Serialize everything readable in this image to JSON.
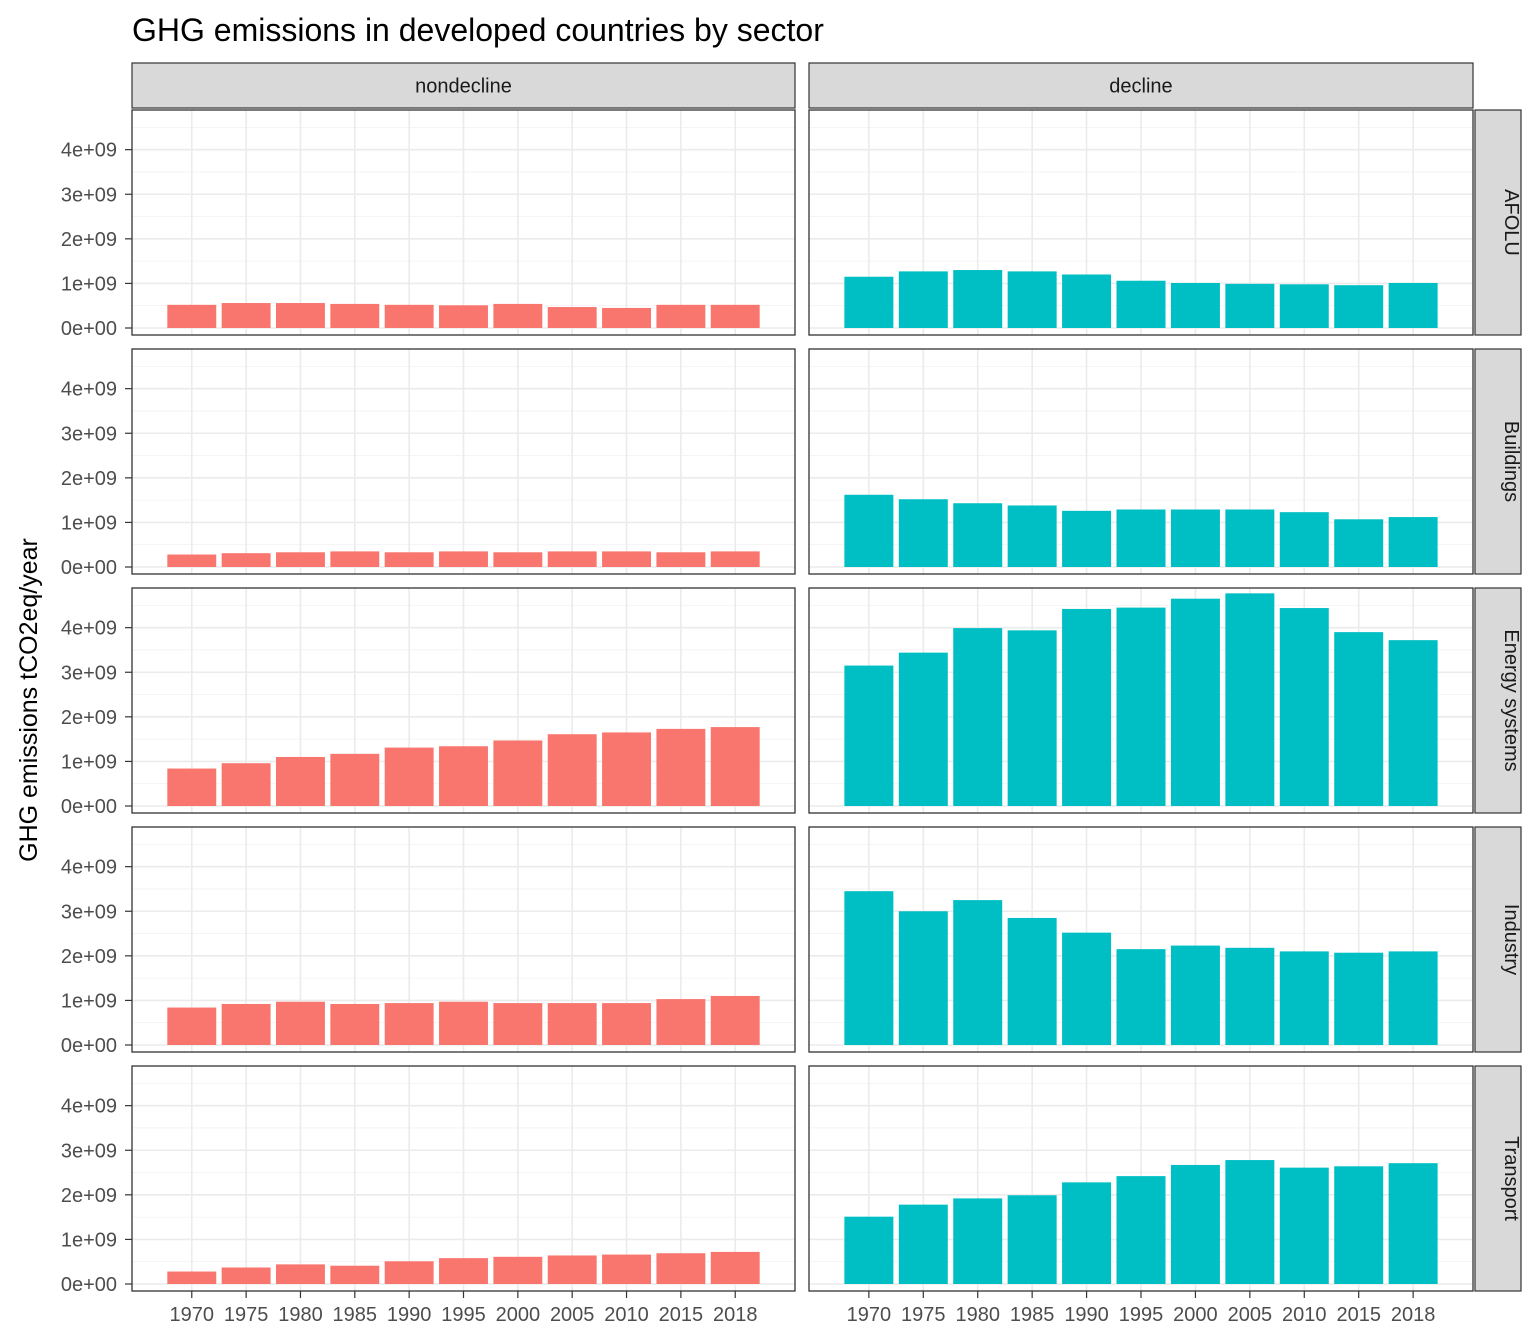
{
  "chart_data": {
    "type": "bar",
    "title": "GHG emissions in developed countries by sector",
    "xlabel": "",
    "ylabel": "GHG emissions tCO2eq/year",
    "ylim": [
      0,
      4800000000
    ],
    "yticks": [
      0,
      1000000000,
      2000000000,
      3000000000,
      4000000000
    ],
    "ytick_labels": [
      "0e+00",
      "1e+09",
      "2e+09",
      "3e+09",
      "4e+09"
    ],
    "categories": [
      "1970",
      "1975",
      "1980",
      "1985",
      "1990",
      "1995",
      "2000",
      "2005",
      "2010",
      "2015",
      "2018"
    ],
    "facet_columns": [
      "nondecline",
      "decline"
    ],
    "facet_rows": [
      "AFOLU",
      "Buildings",
      "Energy systems",
      "Industry",
      "Transport"
    ],
    "colors": {
      "nondecline": "#F8766D",
      "decline": "#00BFC4"
    },
    "grid": true,
    "legend": "none",
    "series": [
      {
        "sector": "AFOLU",
        "group": "nondecline",
        "values": [
          520000000,
          560000000,
          560000000,
          540000000,
          520000000,
          510000000,
          540000000,
          470000000,
          450000000,
          520000000,
          520000000
        ]
      },
      {
        "sector": "AFOLU",
        "group": "decline",
        "values": [
          1150000000,
          1270000000,
          1300000000,
          1270000000,
          1200000000,
          1060000000,
          1010000000,
          990000000,
          980000000,
          960000000,
          1010000000
        ]
      },
      {
        "sector": "Buildings",
        "group": "nondecline",
        "values": [
          280000000,
          310000000,
          330000000,
          350000000,
          330000000,
          350000000,
          330000000,
          350000000,
          350000000,
          330000000,
          350000000
        ]
      },
      {
        "sector": "Buildings",
        "group": "decline",
        "values": [
          1620000000,
          1520000000,
          1430000000,
          1380000000,
          1260000000,
          1290000000,
          1290000000,
          1290000000,
          1230000000,
          1070000000,
          1120000000
        ]
      },
      {
        "sector": "Energy systems",
        "group": "nondecline",
        "values": [
          840000000,
          960000000,
          1100000000,
          1170000000,
          1310000000,
          1340000000,
          1470000000,
          1610000000,
          1650000000,
          1730000000,
          1770000000
        ]
      },
      {
        "sector": "Energy systems",
        "group": "decline",
        "values": [
          3150000000,
          3440000000,
          3990000000,
          3940000000,
          4420000000,
          4450000000,
          4650000000,
          4770000000,
          4440000000,
          3900000000,
          3720000000
        ]
      },
      {
        "sector": "Industry",
        "group": "nondecline",
        "values": [
          840000000,
          920000000,
          970000000,
          920000000,
          940000000,
          970000000,
          940000000,
          940000000,
          940000000,
          1030000000,
          1100000000
        ]
      },
      {
        "sector": "Industry",
        "group": "decline",
        "values": [
          3450000000,
          3000000000,
          3250000000,
          2850000000,
          2520000000,
          2150000000,
          2230000000,
          2180000000,
          2100000000,
          2070000000,
          2100000000
        ]
      },
      {
        "sector": "Transport",
        "group": "nondecline",
        "values": [
          280000000,
          370000000,
          440000000,
          410000000,
          510000000,
          580000000,
          610000000,
          640000000,
          660000000,
          690000000,
          720000000
        ]
      },
      {
        "sector": "Transport",
        "group": "decline",
        "values": [
          1510000000,
          1780000000,
          1920000000,
          1990000000,
          2280000000,
          2420000000,
          2670000000,
          2780000000,
          2610000000,
          2640000000,
          2710000000
        ]
      }
    ]
  }
}
